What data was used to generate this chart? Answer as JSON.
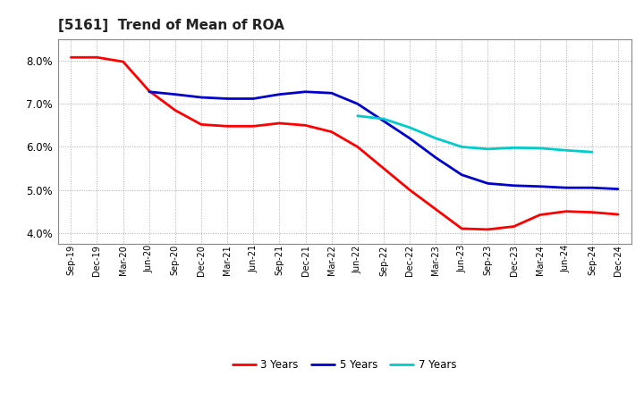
{
  "title": "[5161]  Trend of Mean of ROA",
  "x_labels": [
    "Sep-19",
    "Dec-19",
    "Mar-20",
    "Jun-20",
    "Sep-20",
    "Dec-20",
    "Mar-21",
    "Jun-21",
    "Sep-21",
    "Dec-21",
    "Mar-22",
    "Jun-22",
    "Sep-22",
    "Dec-22",
    "Mar-23",
    "Jun-23",
    "Sep-23",
    "Dec-23",
    "Mar-24",
    "Jun-24",
    "Sep-24",
    "Dec-24"
  ],
  "series_3y": [
    8.08,
    8.08,
    7.98,
    7.3,
    6.85,
    6.52,
    6.48,
    6.48,
    6.55,
    6.5,
    6.35,
    6.0,
    5.5,
    5.0,
    4.55,
    4.1,
    4.08,
    4.15,
    4.42,
    4.5,
    4.48,
    4.43
  ],
  "series_5y": [
    null,
    null,
    null,
    7.28,
    7.22,
    7.15,
    7.12,
    7.12,
    7.22,
    7.28,
    7.25,
    7.0,
    6.6,
    6.2,
    5.75,
    5.35,
    5.15,
    5.1,
    5.08,
    5.05,
    5.05,
    5.02
  ],
  "series_7y": [
    null,
    null,
    null,
    null,
    null,
    null,
    null,
    null,
    null,
    null,
    null,
    6.72,
    6.65,
    6.45,
    6.2,
    6.0,
    5.95,
    5.98,
    5.97,
    5.92,
    5.88,
    null
  ],
  "series_10y": [
    null,
    null,
    null,
    null,
    null,
    null,
    null,
    null,
    null,
    null,
    null,
    null,
    null,
    null,
    null,
    null,
    null,
    null,
    null,
    null,
    null,
    null
  ],
  "color_3y": "#ff0000",
  "color_5y": "#0000cc",
  "color_7y": "#00cccc",
  "color_10y": "#008000",
  "ylim_min": 3.75,
  "ylim_max": 8.5,
  "background_color": "#ffffff",
  "grid_color": "#aaaaaa"
}
